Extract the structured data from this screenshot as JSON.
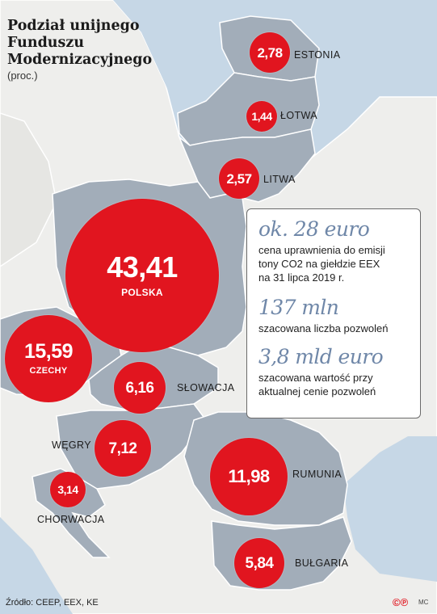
{
  "title_lines": [
    "Podział unijnego",
    "Funduszu",
    "Modernizacyjnego"
  ],
  "unit": "(proc.)",
  "countries": {
    "estonia": {
      "name": "ESTONIA",
      "value": "2,78"
    },
    "lotwa": {
      "name": "ŁOTWA",
      "value": "1,44"
    },
    "litwa": {
      "name": "LITWA",
      "value": "2,57"
    },
    "polska": {
      "name": "POLSKA",
      "value": "43,41"
    },
    "czechy": {
      "name": "CZECHY",
      "value": "15,59"
    },
    "slowacja": {
      "name": "SŁOWACJA",
      "value": "6,16"
    },
    "wegry": {
      "name": "WĘGRY",
      "value": "7,12"
    },
    "chorwacja": {
      "name": "CHORWACJA",
      "value": "3,14"
    },
    "rumunia": {
      "name": "RUMUNIA",
      "value": "11,98"
    },
    "bulgaria": {
      "name": "BUŁGARIA",
      "value": "5,84"
    }
  },
  "info": {
    "price_big": "ok. 28 euro",
    "price_desc_lines": [
      "cena uprawnienia do emisji",
      "tony CO2 na giełdzie EEX",
      "na 31 lipca 2019 r."
    ],
    "permits_big": "137 mln",
    "permits_desc": "szacowana liczba pozwoleń",
    "value_big": "3,8 mld euro",
    "value_desc_lines": [
      "szacowana wartość przy",
      "aktualnej cenie pozwoleń"
    ]
  },
  "source": "Źródło: CEEP, EEX, KE",
  "logo": "©℗",
  "author": "MC",
  "colors": {
    "sea": "#c6d7e6",
    "land_other": "#eeeeec",
    "land_highlight": "#a2adb9",
    "border": "#ffffff",
    "bubble": "#e1151f",
    "accent_text": "#6f87a8"
  }
}
